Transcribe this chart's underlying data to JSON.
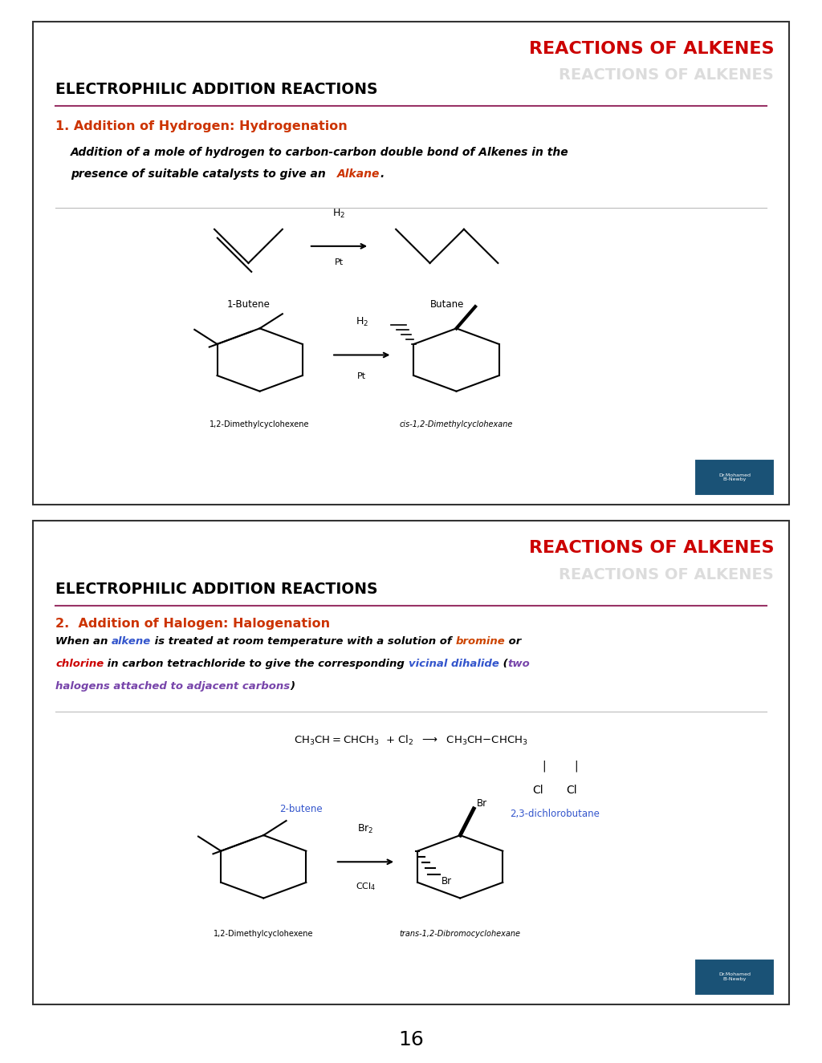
{
  "bg_color": "#ffffff",
  "border_color": "#333333",
  "title_red": "#cc0000",
  "orange_red": "#cc3300",
  "blue_text": "#3355cc",
  "purple_italic": "#7744aa",
  "bromine_color": "#cc4400",
  "chlorine_color": "#cc0000",
  "alkene_color": "#3355cc",
  "vicinal_color": "#3355cc",
  "slide1_title": "REACTIONS OF ALKENES",
  "slide1_subtitle": "ELECTROPHILIC ADDITION REACTIONS",
  "slide1_heading": "1. Addition of Hydrogen: Hydrogenation",
  "slide1_desc1": "Addition of a mole of hydrogen to carbon-carbon double bond of Alkenes in the",
  "slide1_desc2": "presence of suitable catalysts to give an ",
  "slide1_desc2_colored": "Alkane",
  "slide1_desc2_end": ".",
  "slide2_title": "REACTIONS OF ALKENES",
  "slide2_subtitle": "ELECTROPHILIC ADDITION REACTIONS",
  "slide2_heading": "2.  Addition of Halogen: Halogenation",
  "page_number": "16"
}
